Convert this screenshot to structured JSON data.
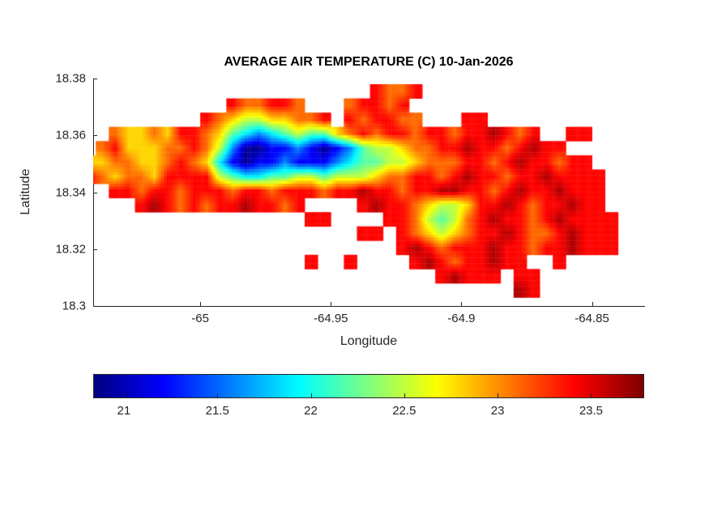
{
  "chart_data": {
    "type": "heatmap",
    "title": "AVERAGE AIR TEMPERATURE (C) 10-Jan-2026",
    "xlabel": "Longitude",
    "ylabel": "Latitude",
    "xlim": [
      -65.041,
      -64.83
    ],
    "ylim": [
      18.3,
      18.38
    ],
    "x_ticks": [
      -65,
      -64.95,
      -64.9,
      -64.85
    ],
    "x_tick_labels": [
      "-65",
      "-64.95",
      "-64.9",
      "-64.85"
    ],
    "y_ticks": [
      18.38,
      18.36,
      18.34,
      18.32,
      18.3
    ],
    "y_tick_labels": [
      "18.38",
      "18.36",
      "18.34",
      "18.32",
      "18.3"
    ],
    "grid_lines": "off",
    "colormap": "jet",
    "colorbar_orientation": "horizontal",
    "color_axis": {
      "min": 20.84,
      "max": 23.78
    },
    "colorbar_ticks": [
      21,
      21.5,
      22,
      22.5,
      23,
      23.5
    ],
    "colorbar_tick_labels": [
      "21",
      "21.5",
      "22",
      "22.5",
      "23",
      "23.5"
    ],
    "grid": {
      "lon_start": -65.045,
      "lon_step": 0.005,
      "lat_start": 18.378,
      "lat_step": 0.005,
      "cols": 42,
      "rows": 16,
      "legend": {
        ".": null,
        "1": 20.9,
        "2": 21.2,
        "3": 21.6,
        "4": 21.9,
        "5": 22.2,
        "6": 22.5,
        "7": 22.8,
        "8": 23.1,
        "9": 23.4,
        "a": 23.65
      },
      "cells": [
        "......................9889................",
        "...........988998...89989.................",
        ".........9876677889.989988...99...........",
        "..87787998754345655789899899899a989..99...",
        ".8977788986311223212356678899a9989a99.....",
        "778877898742122322234556678889989a99899...",
        "98788799996544556656667889989a99899a9999..",
        "..9989989998998999899a99899aa9989a99a999..",
        "....9a989899a9989....9a998766799a9899a99..",
        ".................99....99865689a9989a9999.",
        ".....................99.98767899a9889a999.",
        "........................9a98999a99899a999.",
        ".................9..9....9a9899a99..9.....",
        "...........................9a999.99.......",
        ".................................a9.......",
        ".........................................."
      ]
    }
  }
}
